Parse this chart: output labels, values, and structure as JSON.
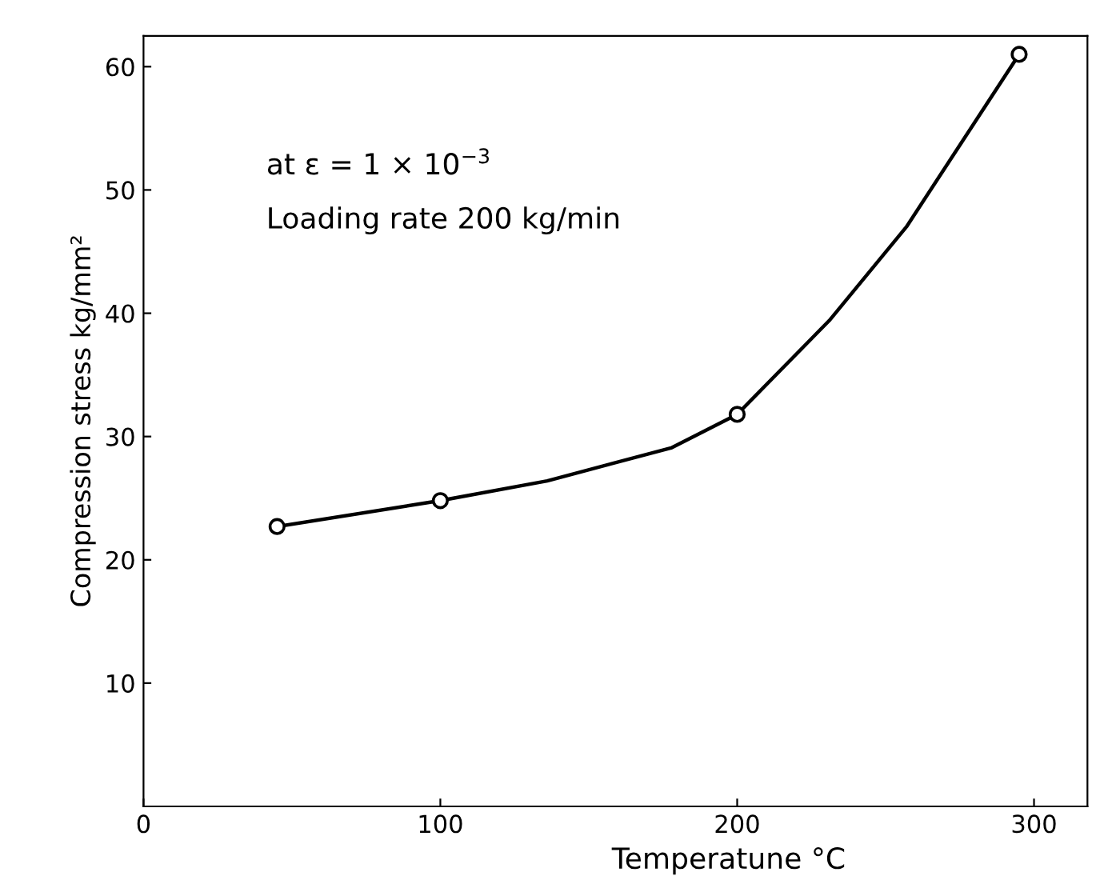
{
  "chart_data": {
    "type": "line",
    "xlabel": "Temperatune °C",
    "ylabel": "Compression stress kg/mm²",
    "series": [
      {
        "marker": "none",
        "color": "#000000",
        "x": [
          45,
          100,
          136,
          178,
          200,
          231,
          257,
          295
        ],
        "values": [
          22.7,
          24.8,
          26.4,
          29.1,
          31.8,
          39.4,
          47.0,
          61
        ]
      },
      {
        "type": "scatter",
        "marker": "circle",
        "color": "#000000",
        "x": [
          45,
          100,
          200,
          295
        ],
        "values": [
          22.7,
          24.8,
          31.8,
          61
        ]
      }
    ],
    "line_style": "solid",
    "xlim": [
      0,
      318
    ],
    "xticks": [
      0,
      100,
      200,
      300
    ],
    "ylim": [
      0,
      62.5
    ],
    "yticks": [
      10,
      20,
      30,
      40,
      50,
      60
    ],
    "grid": false,
    "annotations": [
      "at ε = 1 × 10$^{−3}$",
      "Loading rate 200 kg/min"
    ]
  }
}
